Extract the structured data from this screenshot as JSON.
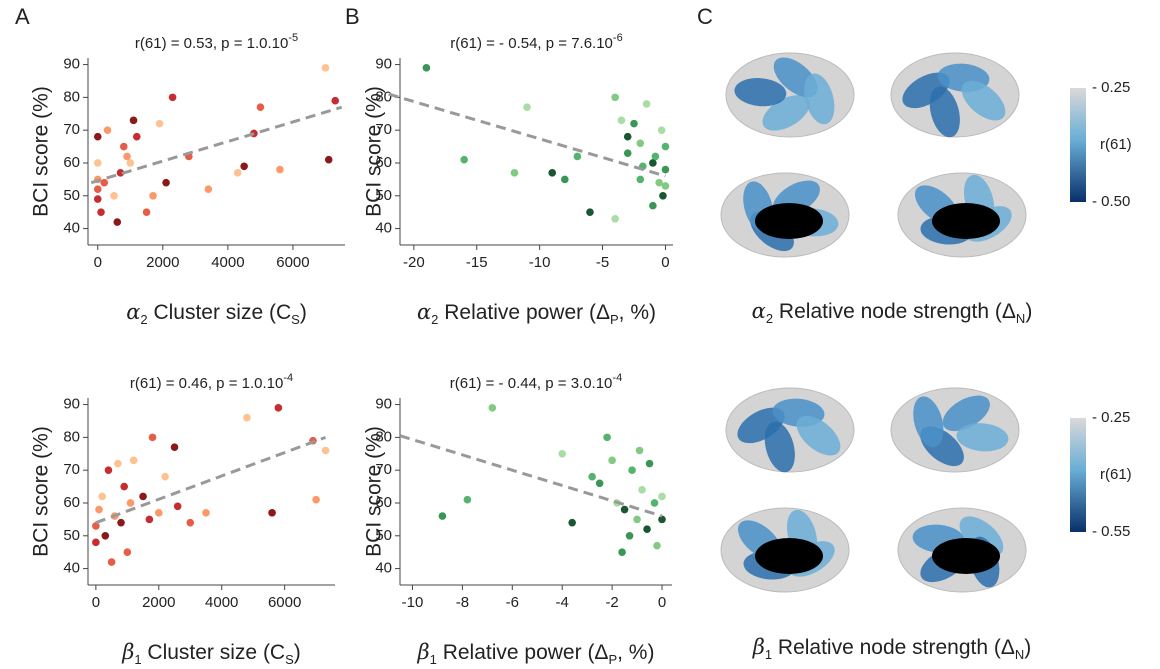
{
  "chart_data": [
    {
      "type": "scatter",
      "letter": "A",
      "title": [
        {
          "text": "r(61) = 0.53, p = 1.0.10"
        },
        {
          "text": "-5",
          "sup": true
        }
      ],
      "x_label": [
        {
          "text": "α",
          "italic": true
        },
        {
          "text": "2",
          "sub": true
        },
        {
          "text": " Cluster size (C"
        },
        {
          "text": "S",
          "sub": true
        },
        {
          "text": ")"
        }
      ],
      "y_label": "BCI score  (%)",
      "xlim": [
        -300,
        7600
      ],
      "ylim": [
        35,
        92
      ],
      "xticks": [
        0,
        2000,
        4000,
        6000
      ],
      "yticks": [
        40,
        50,
        60,
        70,
        80,
        90
      ],
      "colors": [
        "#c0151a",
        "#e34a33",
        "#fc8d59",
        "#fdbb84",
        "#7f0000"
      ],
      "x": [
        0,
        0,
        0,
        0,
        0,
        100,
        200,
        300,
        500,
        600,
        700,
        800,
        900,
        1000,
        1100,
        1200,
        1500,
        1700,
        1900,
        2100,
        2300,
        2800,
        3400,
        4300,
        4500,
        4800,
        5000,
        5600,
        7000,
        7100,
        7300
      ],
      "y": [
        49,
        52,
        55,
        60,
        68,
        45,
        54,
        70,
        50,
        42,
        57,
        65,
        62,
        60,
        73,
        68,
        45,
        50,
        72,
        54,
        80,
        62,
        52,
        57,
        59,
        69,
        77,
        58,
        89,
        61,
        79
      ],
      "fit": {
        "x": [
          -200,
          7500
        ],
        "y": [
          54,
          77
        ]
      }
    },
    {
      "type": "scatter",
      "letter": "B",
      "title": [
        {
          "text": "r(61) = - 0.54, p = 7.6.10"
        },
        {
          "text": "-6",
          "sup": true
        }
      ],
      "x_label": [
        {
          "text": "α",
          "italic": true
        },
        {
          "text": "2",
          "sub": true
        },
        {
          "text": " Relative power (Δ"
        },
        {
          "text": "P",
          "sub": true
        },
        {
          "text": ", %)"
        }
      ],
      "y_label": "BCI score  (%)",
      "xlim": [
        -21.1,
        0.6
      ],
      "ylim": [
        35,
        92
      ],
      "xticks": [
        -20,
        -15,
        -10,
        -5,
        0
      ],
      "yticks": [
        40,
        50,
        60,
        70,
        80,
        90
      ],
      "colors": [
        "#238b45",
        "#41ab5d",
        "#74c476",
        "#a1d99b",
        "#00441b"
      ],
      "x": [
        -19,
        -16,
        -12,
        -11,
        -9,
        -8,
        -7,
        -4,
        -3.5,
        -3,
        -2.5,
        -2,
        -2,
        -1.5,
        -1,
        -1,
        -0.8,
        -0.5,
        -0.3,
        -0.2,
        0,
        0,
        0,
        -4,
        -6,
        -3,
        -1.8
      ],
      "y": [
        89,
        61,
        57,
        77,
        57,
        55,
        62,
        80,
        73,
        68,
        72,
        55,
        66,
        78,
        60,
        47,
        62,
        54,
        70,
        50,
        58,
        65,
        53,
        43,
        45,
        63,
        59
      ],
      "fit": {
        "x": [
          -22,
          0
        ],
        "y": [
          81,
          56
        ]
      }
    },
    {
      "type": "scatter",
      "title": [
        {
          "text": "r(61) = 0.46, p = 1.0.10"
        },
        {
          "text": "-4",
          "sup": true
        }
      ],
      "x_label": [
        {
          "text": "β",
          "italic": true
        },
        {
          "text": "1",
          "sub": true
        },
        {
          "text": " Cluster size (C"
        },
        {
          "text": "S",
          "sub": true
        },
        {
          "text": ")"
        }
      ],
      "y_label": "BCI score  (%)",
      "xlim": [
        -250,
        7600
      ],
      "ylim": [
        35,
        92
      ],
      "xticks": [
        0,
        2000,
        4000,
        6000
      ],
      "yticks": [
        40,
        50,
        60,
        70,
        80,
        90
      ],
      "colors": [
        "#c0151a",
        "#e34a33",
        "#fc8d59",
        "#fdbb84",
        "#7f0000"
      ],
      "x": [
        0,
        0,
        100,
        200,
        300,
        400,
        500,
        600,
        700,
        800,
        900,
        1000,
        1100,
        1200,
        1500,
        1700,
        1800,
        2000,
        2200,
        2500,
        2600,
        3000,
        3500,
        4800,
        5600,
        5800,
        6900,
        7000,
        7300
      ],
      "y": [
        48,
        53,
        58,
        62,
        50,
        70,
        42,
        56,
        72,
        54,
        65,
        45,
        60,
        73,
        62,
        55,
        80,
        57,
        68,
        77,
        59,
        54,
        57,
        86,
        57,
        89,
        79,
        61,
        76
      ],
      "fit": {
        "x": [
          0,
          7300
        ],
        "y": [
          54,
          80
        ]
      }
    },
    {
      "type": "scatter",
      "title": [
        {
          "text": "r(61) = - 0.44, p = 3.0.10"
        },
        {
          "text": "-4",
          "sup": true
        }
      ],
      "x_label": [
        {
          "text": "β",
          "italic": true
        },
        {
          "text": "1",
          "sub": true
        },
        {
          "text": " Relative power (Δ"
        },
        {
          "text": "P",
          "sub": true
        },
        {
          "text": ", %)"
        }
      ],
      "y_label": "BCI score  (%)",
      "xlim": [
        -10.5,
        0.4
      ],
      "ylim": [
        35,
        92
      ],
      "xticks": [
        -10,
        -8,
        -6,
        -4,
        -2,
        0
      ],
      "yticks": [
        40,
        50,
        60,
        70,
        80,
        90
      ],
      "colors": [
        "#238b45",
        "#41ab5d",
        "#74c476",
        "#a1d99b",
        "#00441b"
      ],
      "x": [
        -8.8,
        -7.8,
        -6.8,
        -4,
        -3.6,
        -2.5,
        -2.2,
        -2,
        -1.8,
        -1.5,
        -1.3,
        -1.2,
        -1,
        -0.8,
        -0.6,
        -0.5,
        -0.3,
        -0.2,
        0,
        0,
        -1.6,
        -2.8,
        -0.9
      ],
      "y": [
        56,
        61,
        89,
        75,
        54,
        66,
        80,
        73,
        60,
        58,
        50,
        70,
        55,
        64,
        52,
        72,
        60,
        47,
        62,
        55,
        45,
        68,
        76
      ],
      "fit": {
        "x": [
          -10.5,
          0
        ],
        "y": [
          80.5,
          56
        ]
      }
    }
  ],
  "brain_panels": [
    {
      "letter": "C",
      "x_label": [
        {
          "text": "α",
          "italic": true
        },
        {
          "text": "2",
          "sub": true
        },
        {
          "text": " Relative node strength (Δ"
        },
        {
          "text": "N",
          "sub": true
        },
        {
          "text": ")"
        }
      ],
      "colorbar": {
        "label": "r(61)",
        "clim": [
          0.25,
          0.5
        ],
        "ticks": [
          {
            "value": 0.25,
            "label": "- 0.25"
          },
          {
            "value": 0.5,
            "label": "- 0.50"
          }
        ]
      }
    },
    {
      "x_label": [
        {
          "text": "β",
          "italic": true
        },
        {
          "text": "1",
          "sub": true
        },
        {
          "text": " Relative node strength (Δ"
        },
        {
          "text": "N",
          "sub": true
        },
        {
          "text": ")"
        }
      ],
      "colorbar": {
        "label": "r(61)",
        "clim": [
          0.25,
          0.55
        ],
        "ticks": [
          {
            "value": 0.25,
            "label": "- 0.25"
          },
          {
            "value": 0.55,
            "label": "- 0.55"
          }
        ]
      }
    }
  ]
}
